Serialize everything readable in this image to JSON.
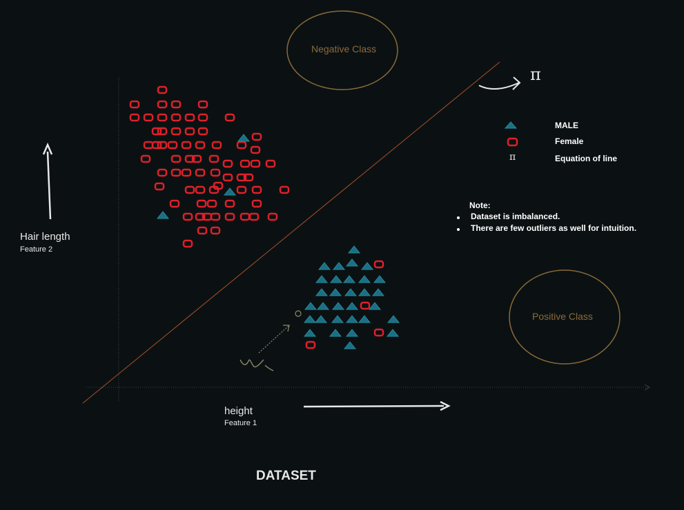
{
  "diagram": {
    "negative_class_label": "Negative Class",
    "positive_class_label": "Positive Class",
    "y_axis_label": "Hair length",
    "y_axis_sublabel": "Feature 2",
    "x_axis_label": "height",
    "x_axis_sublabel": "Feature 1",
    "hyperplane_symbol": "π",
    "legend": [
      {
        "label": "MALE",
        "marker": "male-triangle-icon"
      },
      {
        "label": "Female",
        "marker": "female-square-icon"
      },
      {
        "label": "Equation of line",
        "marker": "pi-icon"
      }
    ],
    "note": {
      "heading": "Note:",
      "bullets": [
        "Dataset is imbalanced.",
        "There are few outliers as well for intuition."
      ]
    },
    "handwritten_vector_label": "w",
    "title": "DATASET",
    "colors": {
      "background": "#0b1112",
      "female": "#e0202a",
      "male": "#1a6f84",
      "line": "#a8502a",
      "circle": "#8b6a3a",
      "arrow": "#e8e8e8"
    }
  }
}
